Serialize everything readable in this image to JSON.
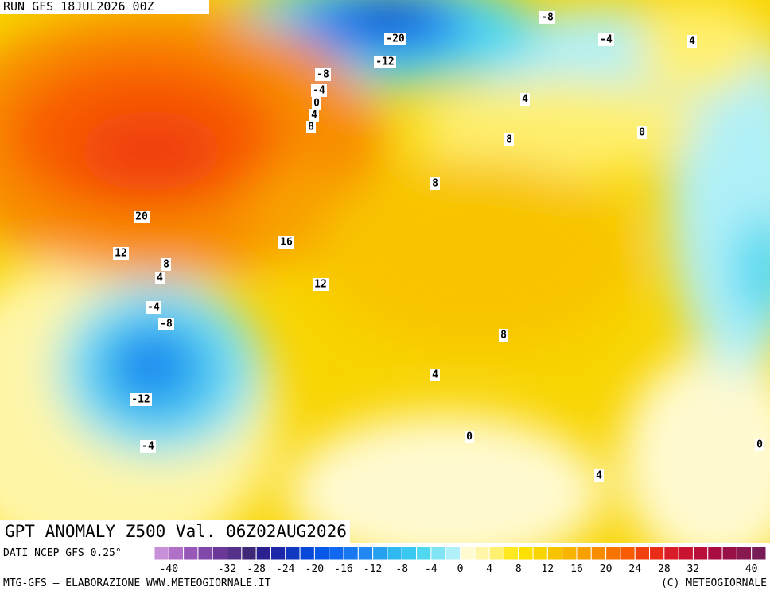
{
  "header": {
    "run": "RUN GFS 18JUL2026 00Z"
  },
  "title": "GPT ANOMALY Z500 Val. 06Z02AUG2026",
  "source": "DATI NCEP GFS 0.25°",
  "footer": {
    "left": "MTG-GFS — ELABORAZIONE WWW.METEOGIORNALE.IT",
    "right": "(C) METEOGIORNALE"
  },
  "contour_labels": [
    -8,
    -4,
    4,
    -20,
    -12,
    -8,
    -4,
    0,
    4,
    8,
    4,
    0,
    8,
    8,
    20,
    16,
    12,
    8,
    4,
    12,
    -4,
    -8,
    8,
    4,
    -12,
    0,
    -4,
    4,
    0
  ],
  "colorbar": {
    "range": [
      -42,
      42
    ],
    "colors": [
      "#c890d8",
      "#b070c8",
      "#9858b8",
      "#8048a8",
      "#6a3898",
      "#553088",
      "#402878",
      "#2a2090",
      "#1c28a8",
      "#1038c0",
      "#0848d8",
      "#0858e8",
      "#1068f0",
      "#1878f0",
      "#2088f0",
      "#28a0f0",
      "#30b8f0",
      "#38c8f0",
      "#50d8f0",
      "#80e4f4",
      "#b0f0f8",
      "#fffad0",
      "#fff6a8",
      "#fff070",
      "#ffe820",
      "#fce000",
      "#f8d400",
      "#f8c400",
      "#f8b400",
      "#f8a000",
      "#f88c00",
      "#f87400",
      "#f85c00",
      "#f04010",
      "#e82c18",
      "#d81c28",
      "#c81430",
      "#b81038",
      "#a80c40",
      "#981048",
      "#881850",
      "#781c58"
    ],
    "ticks": [
      -40,
      -32,
      -28,
      -24,
      -20,
      -16,
      -12,
      -8,
      -4,
      0,
      4,
      8,
      12,
      16,
      20,
      24,
      28,
      32,
      40
    ]
  }
}
